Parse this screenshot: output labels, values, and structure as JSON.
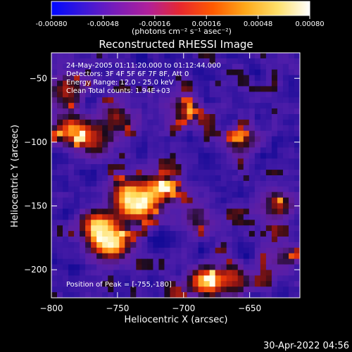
{
  "colorbar": {
    "ticks": [
      "-0.00080",
      "-0.00048",
      "-0.00016",
      "0.00016",
      "0.00048",
      "0.00080"
    ],
    "unit": "(photons cm⁻² s⁻¹ asec⁻²)",
    "range": [
      -0.0008,
      0.0008
    ],
    "colors": [
      "#0008ff",
      "#3b18d8",
      "#7a1cb8",
      "#b0209a",
      "#e8282e",
      "#ff5a00",
      "#ffa81a",
      "#ffe06a",
      "#ffffff"
    ]
  },
  "chart_data": {
    "type": "heatmap",
    "title": "Reconstructed RHESSI Image",
    "xlabel": "Heliocentric X (arcsec)",
    "ylabel": "Heliocentric Y (arcsec)",
    "xlim": [
      -800,
      -612
    ],
    "ylim": [
      -222,
      -30
    ],
    "xticks": [
      -800,
      -750,
      -700,
      -650
    ],
    "xtick_labels": [
      "−800",
      "−750",
      "−700",
      "−650"
    ],
    "yticks": [
      -50,
      -100,
      -150,
      -200
    ],
    "ytick_labels": [
      "−50",
      "−100",
      "−150",
      "−200"
    ],
    "annotations": [
      "24-May-2005 01:11:20.000 to 01:12:44.000",
      "Detectors: 3F 4F 5F 6F 7F 8F, Att 0",
      "Energy Range: 12.0 - 25.0 keV",
      "Clean     Total counts: 1.94E+03"
    ],
    "peak_label": "Position of Peak = [-755,-180]",
    "peak": [
      -755,
      -180
    ],
    "bright_regions": [
      {
        "x": -755,
        "y": -180,
        "level": 1.0
      },
      {
        "x": -765,
        "y": -165,
        "level": 0.9
      },
      {
        "x": -735,
        "y": -152,
        "level": 0.8
      },
      {
        "x": -718,
        "y": -137,
        "level": 0.75
      },
      {
        "x": -742,
        "y": -140,
        "level": 0.7
      },
      {
        "x": -685,
        "y": -210,
        "level": 0.85
      },
      {
        "x": -662,
        "y": -208,
        "level": 0.6
      },
      {
        "x": -785,
        "y": -90,
        "level": 0.75
      },
      {
        "x": -790,
        "y": -60,
        "level": 0.6
      },
      {
        "x": -765,
        "y": -100,
        "level": 0.55
      },
      {
        "x": -750,
        "y": -80,
        "level": 0.5
      },
      {
        "x": -700,
        "y": -75,
        "level": 0.5
      },
      {
        "x": -655,
        "y": -100,
        "level": 0.45
      },
      {
        "x": -630,
        "y": -150,
        "level": 0.55
      },
      {
        "x": -625,
        "y": -190,
        "level": 0.4
      },
      {
        "x": -690,
        "y": -160,
        "level": 0.35
      }
    ]
  },
  "footer": {
    "date": "30-Apr-2022 04:56"
  }
}
